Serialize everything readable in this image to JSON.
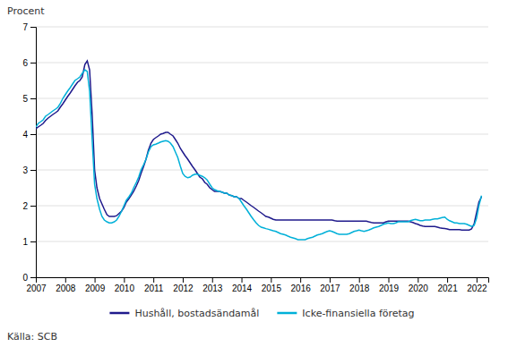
{
  "chart_data": {
    "type": "line",
    "ylabel": "Procent",
    "annotations": [
      "Källa: SCB"
    ],
    "xlim": [
      2007,
      2022.4
    ],
    "xticks": [
      2007,
      2008,
      2009,
      2010,
      2011,
      2012,
      2013,
      2014,
      2015,
      2016,
      2017,
      2018,
      2019,
      2020,
      2021,
      2022
    ],
    "ylim": [
      0,
      7
    ],
    "yticks": [
      0,
      1,
      2,
      3,
      4,
      5,
      6,
      7
    ],
    "grid": true,
    "legend": "bottom",
    "x": [
      2007.0,
      2007.08,
      2007.17,
      2007.25,
      2007.33,
      2007.42,
      2007.5,
      2007.58,
      2007.67,
      2007.75,
      2007.83,
      2007.92,
      2008.0,
      2008.08,
      2008.17,
      2008.25,
      2008.33,
      2008.42,
      2008.5,
      2008.58,
      2008.67,
      2008.75,
      2008.83,
      2008.92,
      2009.0,
      2009.08,
      2009.17,
      2009.25,
      2009.33,
      2009.42,
      2009.5,
      2009.58,
      2009.67,
      2009.75,
      2009.83,
      2009.92,
      2010.0,
      2010.08,
      2010.17,
      2010.25,
      2010.33,
      2010.42,
      2010.5,
      2010.58,
      2010.67,
      2010.75,
      2010.83,
      2010.92,
      2011.0,
      2011.08,
      2011.17,
      2011.25,
      2011.33,
      2011.42,
      2011.5,
      2011.58,
      2011.67,
      2011.75,
      2011.83,
      2011.92,
      2012.0,
      2012.08,
      2012.17,
      2012.25,
      2012.33,
      2012.42,
      2012.5,
      2012.58,
      2012.67,
      2012.75,
      2012.83,
      2012.92,
      2013.0,
      2013.08,
      2013.17,
      2013.25,
      2013.33,
      2013.42,
      2013.5,
      2013.58,
      2013.67,
      2013.75,
      2013.83,
      2013.92,
      2014.0,
      2014.08,
      2014.17,
      2014.25,
      2014.33,
      2014.42,
      2014.5,
      2014.58,
      2014.67,
      2014.75,
      2014.83,
      2014.92,
      2015.0,
      2015.08,
      2015.17,
      2015.25,
      2015.33,
      2015.42,
      2015.5,
      2015.58,
      2015.67,
      2015.75,
      2015.83,
      2015.92,
      2016.0,
      2016.08,
      2016.17,
      2016.25,
      2016.33,
      2016.42,
      2016.5,
      2016.58,
      2016.67,
      2016.75,
      2016.83,
      2016.92,
      2017.0,
      2017.08,
      2017.17,
      2017.25,
      2017.33,
      2017.42,
      2017.5,
      2017.58,
      2017.67,
      2017.75,
      2017.83,
      2017.92,
      2018.0,
      2018.08,
      2018.17,
      2018.25,
      2018.33,
      2018.42,
      2018.5,
      2018.58,
      2018.67,
      2018.75,
      2018.83,
      2018.92,
      2019.0,
      2019.08,
      2019.17,
      2019.25,
      2019.33,
      2019.42,
      2019.5,
      2019.58,
      2019.67,
      2019.75,
      2019.83,
      2019.92,
      2020.0,
      2020.08,
      2020.17,
      2020.25,
      2020.33,
      2020.42,
      2020.5,
      2020.58,
      2020.67,
      2020.75,
      2020.83,
      2020.92,
      2021.0,
      2021.08,
      2021.17,
      2021.25,
      2021.33,
      2021.42,
      2021.5,
      2021.58,
      2021.67,
      2021.75,
      2021.83,
      2021.92,
      2022.0,
      2022.08,
      2022.17
    ],
    "series": [
      {
        "name": "Hushåll, bostadsändamål",
        "color": "#1f1a8c",
        "values": [
          4.15,
          4.2,
          4.25,
          4.3,
          4.38,
          4.45,
          4.5,
          4.55,
          4.6,
          4.65,
          4.75,
          4.85,
          4.95,
          5.05,
          5.15,
          5.25,
          5.35,
          5.45,
          5.5,
          5.6,
          5.95,
          6.05,
          5.8,
          4.5,
          3.0,
          2.5,
          2.2,
          2.05,
          1.9,
          1.75,
          1.7,
          1.7,
          1.7,
          1.72,
          1.78,
          1.85,
          1.95,
          2.1,
          2.2,
          2.3,
          2.4,
          2.55,
          2.7,
          2.9,
          3.1,
          3.3,
          3.55,
          3.75,
          3.85,
          3.9,
          3.95,
          4.0,
          4.02,
          4.05,
          4.05,
          4.0,
          3.95,
          3.85,
          3.75,
          3.6,
          3.5,
          3.4,
          3.3,
          3.2,
          3.1,
          3.0,
          2.9,
          2.8,
          2.75,
          2.65,
          2.6,
          2.5,
          2.45,
          2.4,
          2.4,
          2.4,
          2.38,
          2.35,
          2.35,
          2.3,
          2.28,
          2.25,
          2.25,
          2.2,
          2.2,
          2.15,
          2.1,
          2.05,
          2.0,
          1.95,
          1.9,
          1.85,
          1.8,
          1.75,
          1.7,
          1.68,
          1.65,
          1.62,
          1.6,
          1.6,
          1.6,
          1.6,
          1.6,
          1.6,
          1.6,
          1.6,
          1.6,
          1.6,
          1.6,
          1.6,
          1.6,
          1.6,
          1.6,
          1.6,
          1.6,
          1.6,
          1.6,
          1.6,
          1.6,
          1.6,
          1.6,
          1.6,
          1.58,
          1.57,
          1.57,
          1.57,
          1.57,
          1.57,
          1.57,
          1.57,
          1.57,
          1.57,
          1.57,
          1.57,
          1.57,
          1.57,
          1.55,
          1.53,
          1.52,
          1.52,
          1.52,
          1.52,
          1.52,
          1.55,
          1.57,
          1.57,
          1.57,
          1.57,
          1.57,
          1.57,
          1.57,
          1.57,
          1.57,
          1.55,
          1.53,
          1.5,
          1.48,
          1.45,
          1.43,
          1.42,
          1.42,
          1.42,
          1.42,
          1.42,
          1.4,
          1.38,
          1.37,
          1.36,
          1.35,
          1.33,
          1.33,
          1.33,
          1.33,
          1.33,
          1.32,
          1.32,
          1.32,
          1.32,
          1.35,
          1.5,
          1.8,
          2.1,
          2.25
        ]
      },
      {
        "name": "Icke-finansiella företag",
        "color": "#00b0d8",
        "values": [
          4.2,
          4.3,
          4.35,
          4.4,
          4.5,
          4.55,
          4.6,
          4.65,
          4.7,
          4.75,
          4.85,
          5.0,
          5.1,
          5.2,
          5.3,
          5.4,
          5.5,
          5.55,
          5.6,
          5.7,
          5.8,
          5.75,
          5.2,
          3.8,
          2.6,
          2.2,
          1.9,
          1.7,
          1.6,
          1.55,
          1.52,
          1.52,
          1.55,
          1.6,
          1.7,
          1.85,
          2.0,
          2.15,
          2.25,
          2.35,
          2.5,
          2.65,
          2.8,
          3.0,
          3.15,
          3.3,
          3.5,
          3.65,
          3.7,
          3.72,
          3.75,
          3.78,
          3.8,
          3.82,
          3.8,
          3.75,
          3.65,
          3.5,
          3.35,
          3.1,
          2.9,
          2.82,
          2.78,
          2.8,
          2.85,
          2.88,
          2.88,
          2.85,
          2.82,
          2.78,
          2.72,
          2.6,
          2.5,
          2.45,
          2.42,
          2.4,
          2.38,
          2.35,
          2.35,
          2.3,
          2.28,
          2.25,
          2.25,
          2.2,
          2.1,
          2.0,
          1.9,
          1.8,
          1.7,
          1.6,
          1.52,
          1.45,
          1.4,
          1.38,
          1.36,
          1.34,
          1.32,
          1.3,
          1.28,
          1.25,
          1.22,
          1.2,
          1.18,
          1.15,
          1.12,
          1.1,
          1.08,
          1.05,
          1.05,
          1.05,
          1.05,
          1.08,
          1.1,
          1.12,
          1.15,
          1.18,
          1.2,
          1.22,
          1.25,
          1.28,
          1.3,
          1.28,
          1.25,
          1.22,
          1.2,
          1.2,
          1.2,
          1.2,
          1.22,
          1.25,
          1.28,
          1.3,
          1.32,
          1.3,
          1.28,
          1.3,
          1.32,
          1.35,
          1.38,
          1.4,
          1.42,
          1.45,
          1.48,
          1.5,
          1.52,
          1.5,
          1.5,
          1.52,
          1.55,
          1.55,
          1.55,
          1.55,
          1.55,
          1.58,
          1.6,
          1.62,
          1.6,
          1.58,
          1.58,
          1.6,
          1.6,
          1.6,
          1.62,
          1.63,
          1.63,
          1.65,
          1.67,
          1.68,
          1.62,
          1.58,
          1.55,
          1.52,
          1.52,
          1.5,
          1.5,
          1.5,
          1.48,
          1.45,
          1.42,
          1.45,
          1.65,
          2.0,
          2.28
        ]
      }
    ]
  }
}
